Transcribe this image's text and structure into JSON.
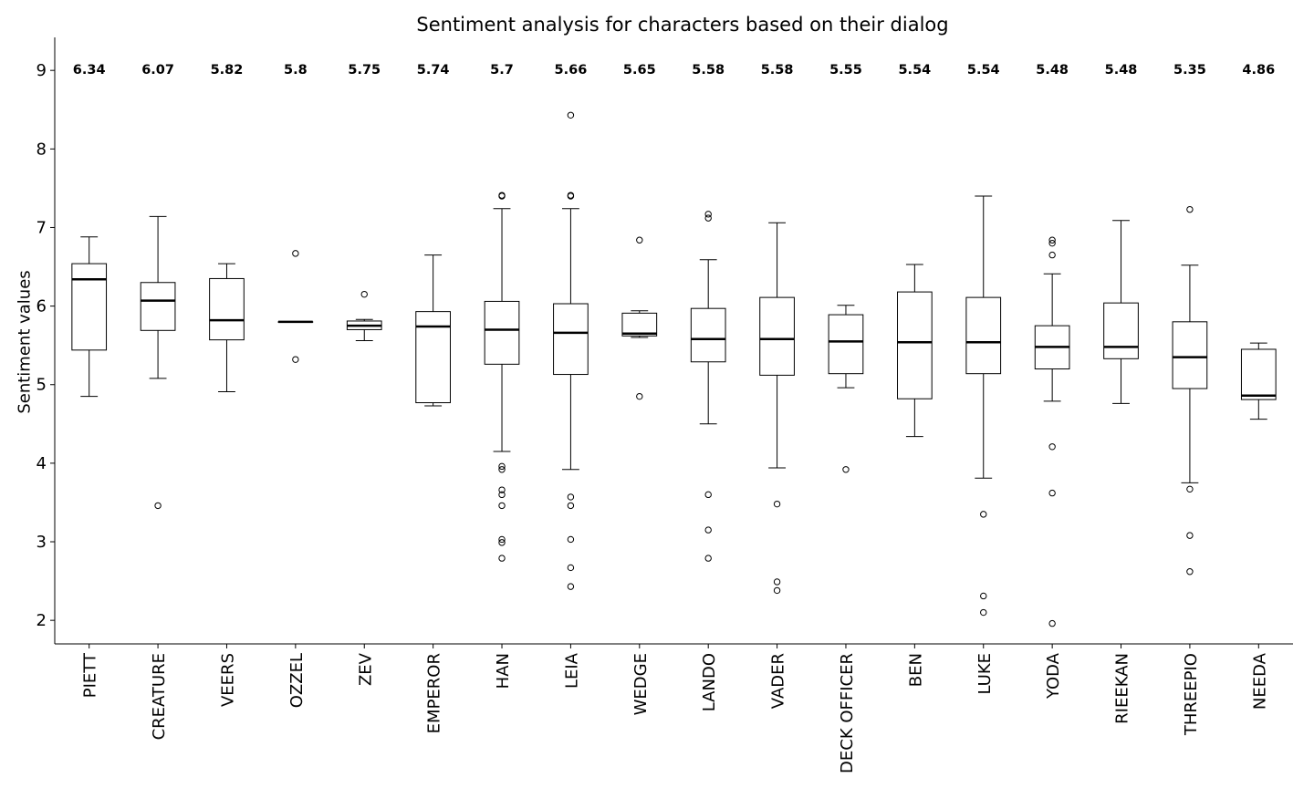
{
  "chart_data": {
    "type": "box",
    "title": "Sentiment analysis for characters based on their dialog",
    "xlabel": "",
    "ylabel": "Sentiment values",
    "ylim": [
      1.7,
      9.42
    ],
    "yticks": [
      2,
      3,
      4,
      5,
      6,
      7,
      8,
      9
    ],
    "grid": false,
    "categories": [
      "PIETT",
      "CREATURE",
      "VEERS",
      "OZZEL",
      "ZEV",
      "EMPEROR",
      "HAN",
      "LEIA",
      "WEDGE",
      "LANDO",
      "VADER",
      "DECK OFFICER",
      "BEN",
      "LUKE",
      "YODA",
      "RIEEKAN",
      "THREEPIO",
      "NEEDA"
    ],
    "median_labels": [
      "6.34",
      "6.07",
      "5.82",
      "5.8",
      "5.75",
      "5.74",
      "5.7",
      "5.66",
      "5.65",
      "5.58",
      "5.58",
      "5.55",
      "5.54",
      "5.54",
      "5.48",
      "5.48",
      "5.35",
      "4.86"
    ],
    "boxes": [
      {
        "whislo": 4.85,
        "q1": 5.44,
        "med": 6.34,
        "q3": 6.54,
        "whishi": 6.88,
        "fliers": []
      },
      {
        "whislo": 5.08,
        "q1": 5.69,
        "med": 6.07,
        "q3": 6.3,
        "whishi": 7.14,
        "fliers": [
          3.46
        ]
      },
      {
        "whislo": 4.91,
        "q1": 5.57,
        "med": 5.82,
        "q3": 6.35,
        "whishi": 6.54,
        "fliers": []
      },
      {
        "whislo": 5.8,
        "q1": 5.8,
        "med": 5.8,
        "q3": 5.8,
        "whishi": 5.8,
        "fliers": [
          6.67,
          5.32
        ]
      },
      {
        "whislo": 5.56,
        "q1": 5.7,
        "med": 5.75,
        "q3": 5.81,
        "whishi": 5.83,
        "fliers": [
          6.15
        ]
      },
      {
        "whislo": 4.73,
        "q1": 4.77,
        "med": 5.74,
        "q3": 5.93,
        "whishi": 6.65,
        "fliers": []
      },
      {
        "whislo": 4.15,
        "q1": 5.26,
        "med": 5.7,
        "q3": 6.06,
        "whishi": 7.24,
        "fliers": [
          7.4,
          7.41,
          3.96,
          3.92,
          3.66,
          3.6,
          3.46,
          3.03,
          2.99,
          2.79
        ]
      },
      {
        "whislo": 3.92,
        "q1": 5.13,
        "med": 5.66,
        "q3": 6.03,
        "whishi": 7.24,
        "fliers": [
          8.43,
          7.4,
          7.41,
          3.57,
          3.46,
          3.03,
          2.67,
          2.43
        ]
      },
      {
        "whislo": 5.6,
        "q1": 5.62,
        "med": 5.65,
        "q3": 5.91,
        "whishi": 5.94,
        "fliers": [
          6.84,
          4.85
        ]
      },
      {
        "whislo": 4.5,
        "q1": 5.29,
        "med": 5.58,
        "q3": 5.97,
        "whishi": 6.59,
        "fliers": [
          7.17,
          7.12,
          3.6,
          3.15,
          2.79
        ]
      },
      {
        "whislo": 3.94,
        "q1": 5.12,
        "med": 5.58,
        "q3": 6.11,
        "whishi": 7.06,
        "fliers": [
          3.48,
          2.49,
          2.38
        ]
      },
      {
        "whislo": 4.96,
        "q1": 5.14,
        "med": 5.55,
        "q3": 5.89,
        "whishi": 6.01,
        "fliers": [
          3.92
        ]
      },
      {
        "whislo": 4.34,
        "q1": 4.82,
        "med": 5.54,
        "q3": 6.18,
        "whishi": 6.53,
        "fliers": []
      },
      {
        "whislo": 3.81,
        "q1": 5.14,
        "med": 5.54,
        "q3": 6.11,
        "whishi": 7.4,
        "fliers": [
          3.35,
          2.31,
          2.1
        ]
      },
      {
        "whislo": 4.79,
        "q1": 5.2,
        "med": 5.48,
        "q3": 5.75,
        "whishi": 6.41,
        "fliers": [
          6.84,
          6.8,
          6.65,
          4.21,
          3.62,
          1.96
        ]
      },
      {
        "whislo": 4.76,
        "q1": 5.33,
        "med": 5.48,
        "q3": 6.04,
        "whishi": 7.09,
        "fliers": []
      },
      {
        "whislo": 3.75,
        "q1": 4.95,
        "med": 5.35,
        "q3": 5.8,
        "whishi": 6.52,
        "fliers": [
          7.23,
          3.67,
          3.08,
          2.62
        ]
      },
      {
        "whislo": 4.56,
        "q1": 4.81,
        "med": 4.86,
        "q3": 5.45,
        "whishi": 5.53,
        "fliers": []
      }
    ]
  }
}
